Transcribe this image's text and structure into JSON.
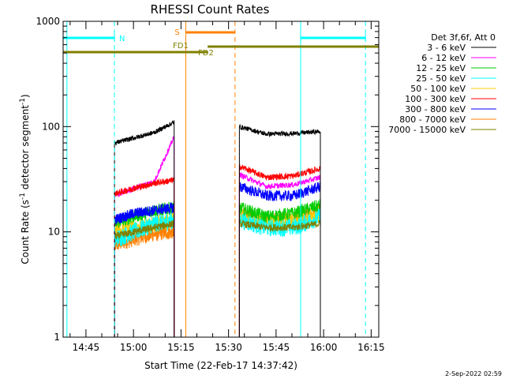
{
  "chart_data": {
    "type": "line",
    "title": "RHESSI Count Rates",
    "xlabel": "Start Time (22-Feb-17 14:37:42)",
    "ylabel_main": "Count Rate (s",
    "ylabel_sup1": "-1",
    "ylabel_mid": " detector segment",
    "ylabel_sup2": "-1",
    "ylabel_end": ")",
    "y_scale": "log",
    "ylim": [
      1,
      1000
    ],
    "xlim_minutes": [
      14.63,
      16.29
    ],
    "x_ticks": [
      {
        "label": "14:45",
        "t": 14.75
      },
      {
        "label": "15:00",
        "t": 15.0
      },
      {
        "label": "15:15",
        "t": 15.25
      },
      {
        "label": "15:30",
        "t": 15.5
      },
      {
        "label": "15:45",
        "t": 15.75
      },
      {
        "label": "16:00",
        "t": 16.0
      },
      {
        "label": "16:15",
        "t": 16.25
      }
    ],
    "y_ticks": [
      {
        "label": "1",
        "v": 1
      },
      {
        "label": "10",
        "v": 10
      },
      {
        "label": "100",
        "v": 100
      },
      {
        "label": "1000",
        "v": 1000
      }
    ],
    "legend_title": "Det 3f,6f, Att 0",
    "series": [
      {
        "name": "3 - 6 keV",
        "color": "#000000"
      },
      {
        "name": "6 - 12 keV",
        "color": "#ff00ff"
      },
      {
        "name": "12 - 25 keV",
        "color": "#00cc00"
      },
      {
        "name": "25 - 50 keV",
        "color": "#00ffff"
      },
      {
        "name": "50 - 100 keV",
        "color": "#ffcc00"
      },
      {
        "name": "100 - 300 keV",
        "color": "#ff0000"
      },
      {
        "name": "300 - 800 keV",
        "color": "#0000ff"
      },
      {
        "name": "800 - 7000 keV",
        "color": "#ff8000"
      },
      {
        "name": "7000 - 15000 keV",
        "color": "#808000"
      }
    ],
    "segments": [
      {
        "start": 14.9,
        "end": 15.214
      },
      {
        "start": 15.557,
        "end": 15.983
      }
    ],
    "series_levels": [
      {
        "seg1": [
          70,
          78,
          88,
          110
        ],
        "seg2": [
          100,
          85,
          86,
          90
        ]
      },
      {
        "seg1": [
          22,
          26,
          30,
          80
        ],
        "seg2": [
          35,
          27,
          28,
          33
        ]
      },
      {
        "seg1": [
          12,
          14,
          16,
          17
        ],
        "seg2": [
          17,
          14,
          15,
          18
        ]
      },
      {
        "seg1": [
          8.5,
          10,
          12,
          13
        ],
        "seg2": [
          13,
          11,
          11,
          14
        ]
      },
      {
        "seg1": [
          10,
          11,
          12,
          13
        ],
        "seg2": [
          14,
          12,
          13,
          15
        ]
      },
      {
        "seg1": [
          23,
          26,
          29,
          31
        ],
        "seg2": [
          42,
          33,
          34,
          40
        ]
      },
      {
        "seg1": [
          13,
          15,
          16,
          17
        ],
        "seg2": [
          27,
          22,
          22,
          27
        ]
      },
      {
        "seg1": [
          7.5,
          8.5,
          9.5,
          10
        ],
        "seg2": [
          15,
          13,
          13,
          16
        ]
      },
      {
        "seg1": [
          9,
          10,
          11,
          12
        ],
        "seg2": [
          12,
          11,
          11,
          12
        ]
      }
    ],
    "annotations": {
      "night": {
        "label": "N",
        "color": "#00ffff",
        "boundaries": [
          14.65,
          15.879
        ],
        "bars": [
          {
            "start": 14.63,
            "end": 14.9
          },
          {
            "start": 15.879,
            "end": 16.22
          }
        ],
        "dashed": [
          14.9,
          16.22
        ]
      },
      "saa": {
        "label": "S",
        "color": "#ff8000",
        "boundary": 15.275,
        "bar": {
          "start": 15.275,
          "end": 15.534
        },
        "dashed": [
          15.534
        ]
      },
      "flare": {
        "color": "#808000",
        "label1": "FD1",
        "label2": "FD2",
        "bar1": {
          "start": 14.63,
          "end": 15.39
        },
        "bar2": {
          "start": 15.39,
          "end": 16.29
        }
      }
    },
    "footer": "2-Sep-2022 02:59"
  }
}
